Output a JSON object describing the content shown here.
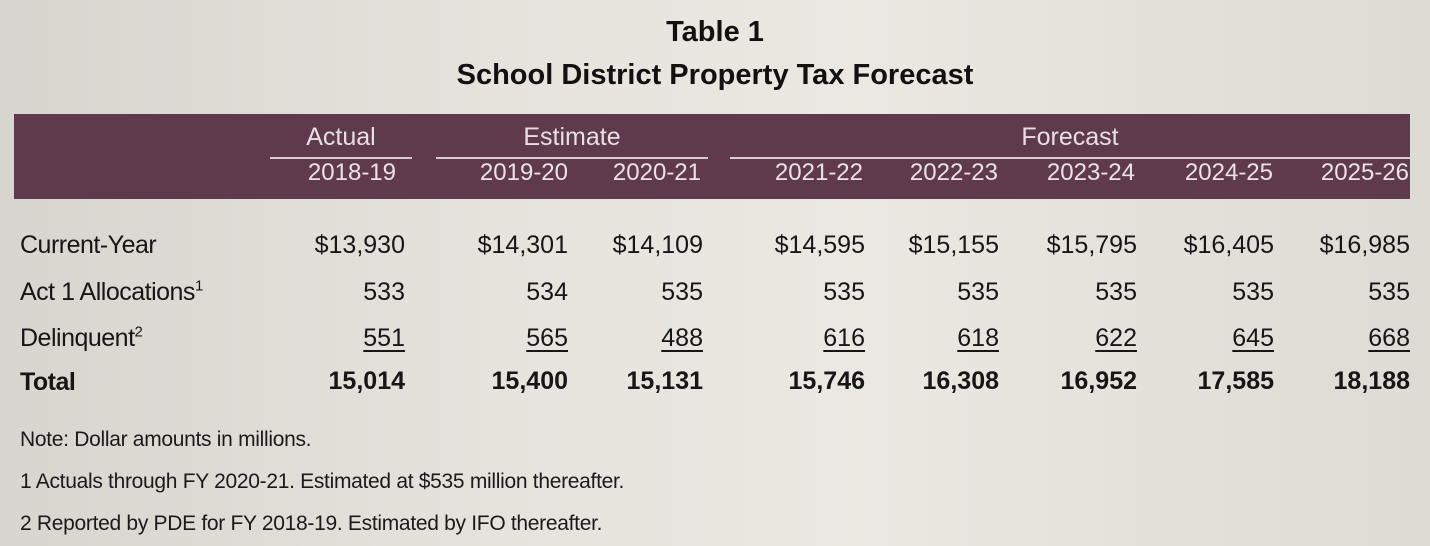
{
  "title": "Table 1",
  "subtitle": "School District Property Tax Forecast",
  "groups": {
    "actual": "Actual",
    "estimate": "Estimate",
    "forecast": "Forecast"
  },
  "years": [
    "2018-19",
    "2019-20",
    "2020-21",
    "2021-22",
    "2022-23",
    "2023-24",
    "2024-25",
    "2025-26"
  ],
  "rows": [
    {
      "label": "Current-Year",
      "sup": "",
      "values": [
        "$13,930",
        "$14,301",
        "$14,109",
        "$14,595",
        "$15,155",
        "$15,795",
        "$16,405",
        "$16,985"
      ]
    },
    {
      "label": "Act 1 Allocations",
      "sup": "1",
      "values": [
        "533",
        "534",
        "535",
        "535",
        "535",
        "535",
        "535",
        "535"
      ]
    },
    {
      "label": "Delinquent",
      "sup": "2",
      "values": [
        "551",
        "565",
        "488",
        "616",
        "618",
        "622",
        "645",
        "668"
      ]
    },
    {
      "label": "Total",
      "sup": "",
      "values": [
        "15,014",
        "15,400",
        "15,131",
        "15,746",
        "16,308",
        "16,952",
        "17,585",
        "18,188"
      ]
    }
  ],
  "notes": [
    "Note: Dollar amounts in millions.",
    "1 Actuals through FY 2020-21. Estimated at $535 million thereafter.",
    "2 Reported by PDE for FY 2018-19. Estimated by IFO thereafter."
  ],
  "colors": {
    "header_band": "#5e3a4c",
    "header_text": "#e9dfe3"
  }
}
